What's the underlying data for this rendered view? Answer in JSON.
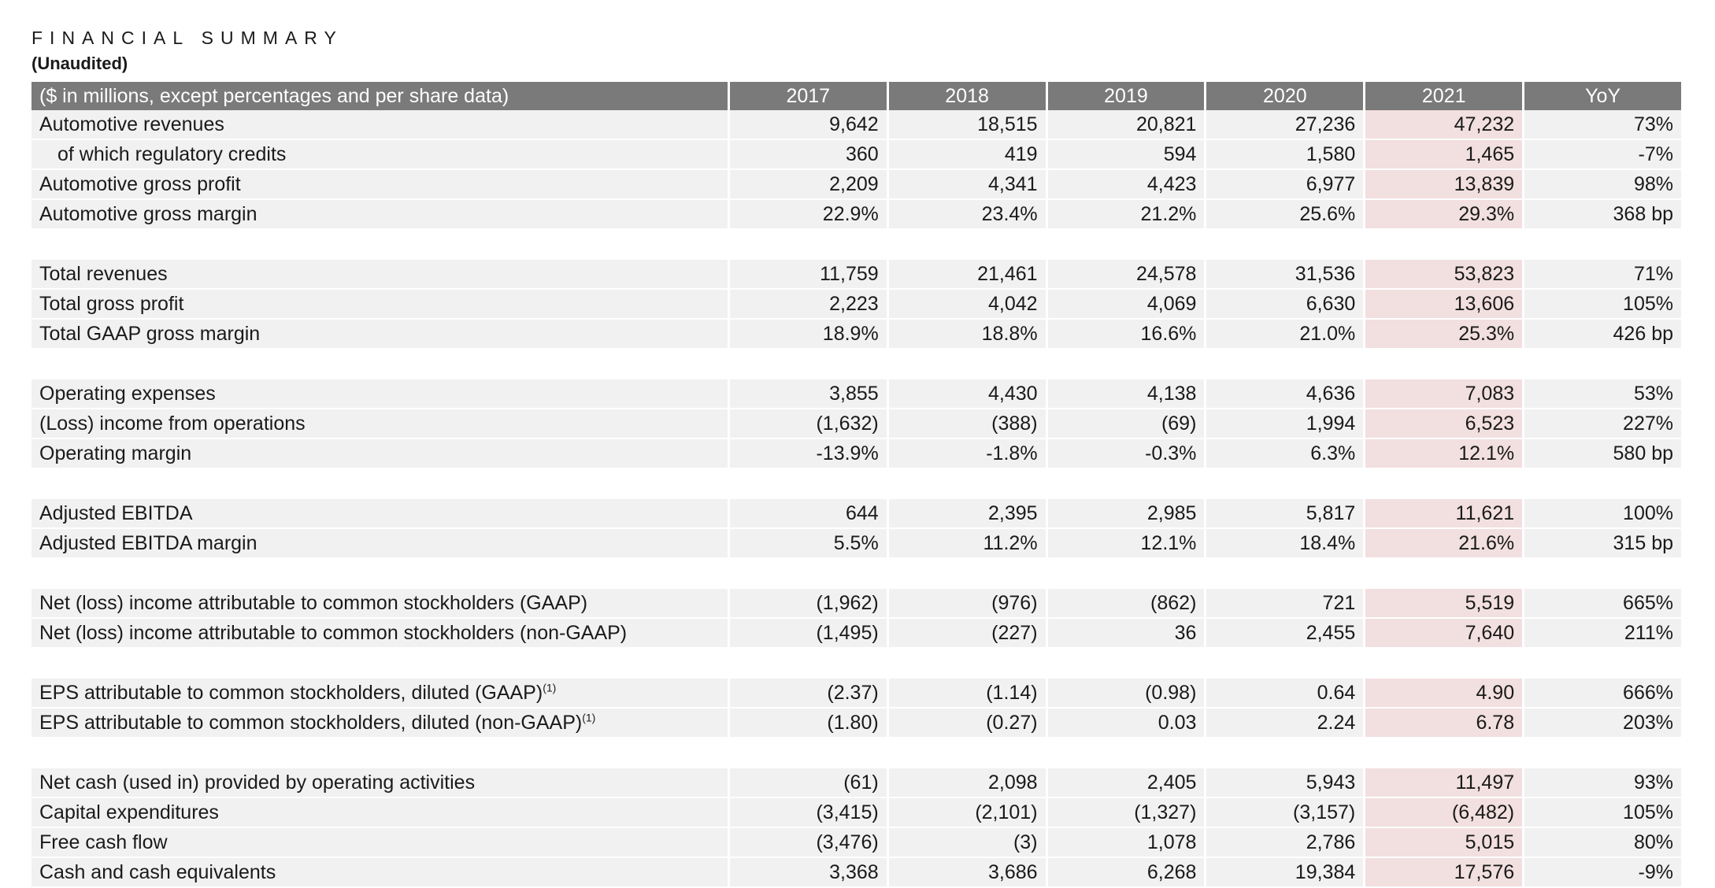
{
  "header": {
    "title": "FINANCIAL SUMMARY",
    "subtitle": "(Unaudited)"
  },
  "table": {
    "columns": [
      "($ in millions, except percentages and per share data)",
      "2017",
      "2018",
      "2019",
      "2020",
      "2021",
      "YoY"
    ],
    "highlight_column": "2021",
    "highlight_color": "#f2dfdf",
    "header_color": "#7a7a7a",
    "groups": [
      [
        {
          "label": "Automotive revenues",
          "indent": false,
          "values": [
            "9,642",
            "18,515",
            "20,821",
            "27,236",
            "47,232",
            "73%"
          ]
        },
        {
          "label": "of which regulatory credits",
          "indent": true,
          "values": [
            "360",
            "419",
            "594",
            "1,580",
            "1,465",
            "-7%"
          ]
        },
        {
          "label": "Automotive gross profit",
          "indent": false,
          "values": [
            "2,209",
            "4,341",
            "4,423",
            "6,977",
            "13,839",
            "98%"
          ]
        },
        {
          "label": "Automotive gross margin",
          "indent": false,
          "values": [
            "22.9%",
            "23.4%",
            "21.2%",
            "25.6%",
            "29.3%",
            "368 bp"
          ]
        }
      ],
      [
        {
          "label": "Total revenues",
          "indent": false,
          "values": [
            "11,759",
            "21,461",
            "24,578",
            "31,536",
            "53,823",
            "71%"
          ]
        },
        {
          "label": "Total gross profit",
          "indent": false,
          "values": [
            "2,223",
            "4,042",
            "4,069",
            "6,630",
            "13,606",
            "105%"
          ]
        },
        {
          "label": "Total GAAP gross margin",
          "indent": false,
          "values": [
            "18.9%",
            "18.8%",
            "16.6%",
            "21.0%",
            "25.3%",
            "426 bp"
          ]
        }
      ],
      [
        {
          "label": "Operating expenses",
          "indent": false,
          "values": [
            "3,855",
            "4,430",
            "4,138",
            "4,636",
            "7,083",
            "53%"
          ]
        },
        {
          "label": "(Loss) income from operations",
          "indent": false,
          "values": [
            "(1,632)",
            "(388)",
            "(69)",
            "1,994",
            "6,523",
            "227%"
          ]
        },
        {
          "label": "Operating margin",
          "indent": false,
          "values": [
            "-13.9%",
            "-1.8%",
            "-0.3%",
            "6.3%",
            "12.1%",
            "580 bp"
          ]
        }
      ],
      [
        {
          "label": "Adjusted EBITDA",
          "indent": false,
          "values": [
            "644",
            "2,395",
            "2,985",
            "5,817",
            "11,621",
            "100%"
          ]
        },
        {
          "label": "Adjusted EBITDA margin",
          "indent": false,
          "values": [
            "5.5%",
            "11.2%",
            "12.1%",
            "18.4%",
            "21.6%",
            "315 bp"
          ]
        }
      ],
      [
        {
          "label": "Net (loss) income attributable to common stockholders (GAAP)",
          "indent": false,
          "values": [
            "(1,962)",
            "(976)",
            "(862)",
            "721",
            "5,519",
            "665%"
          ]
        },
        {
          "label": "Net (loss) income attributable to common stockholders (non-GAAP)",
          "indent": false,
          "values": [
            "(1,495)",
            "(227)",
            "36",
            "2,455",
            "7,640",
            "211%"
          ]
        }
      ],
      [
        {
          "label": "EPS attributable to common stockholders, diluted (GAAP)",
          "sup": "(1)",
          "indent": false,
          "values": [
            "(2.37)",
            "(1.14)",
            "(0.98)",
            "0.64",
            "4.90",
            "666%"
          ]
        },
        {
          "label": "EPS attributable to common stockholders, diluted (non-GAAP)",
          "sup": "(1)",
          "indent": false,
          "values": [
            "(1.80)",
            "(0.27)",
            "0.03",
            "2.24",
            "6.78",
            "203%"
          ]
        }
      ],
      [
        {
          "label": "Net cash (used in) provided by operating activities",
          "indent": false,
          "values": [
            "(61)",
            "2,098",
            "2,405",
            "5,943",
            "11,497",
            "93%"
          ]
        },
        {
          "label": "Capital expenditures",
          "indent": false,
          "values": [
            "(3,415)",
            "(2,101)",
            "(1,327)",
            "(3,157)",
            "(6,482)",
            "105%"
          ]
        },
        {
          "label": "Free cash flow",
          "indent": false,
          "values": [
            "(3,476)",
            "(3)",
            "1,078",
            "2,786",
            "5,015",
            "80%"
          ]
        },
        {
          "label": "Cash and cash equivalents",
          "indent": false,
          "values": [
            "3,368",
            "3,686",
            "6,268",
            "19,384",
            "17,576",
            "-9%"
          ]
        }
      ]
    ]
  }
}
